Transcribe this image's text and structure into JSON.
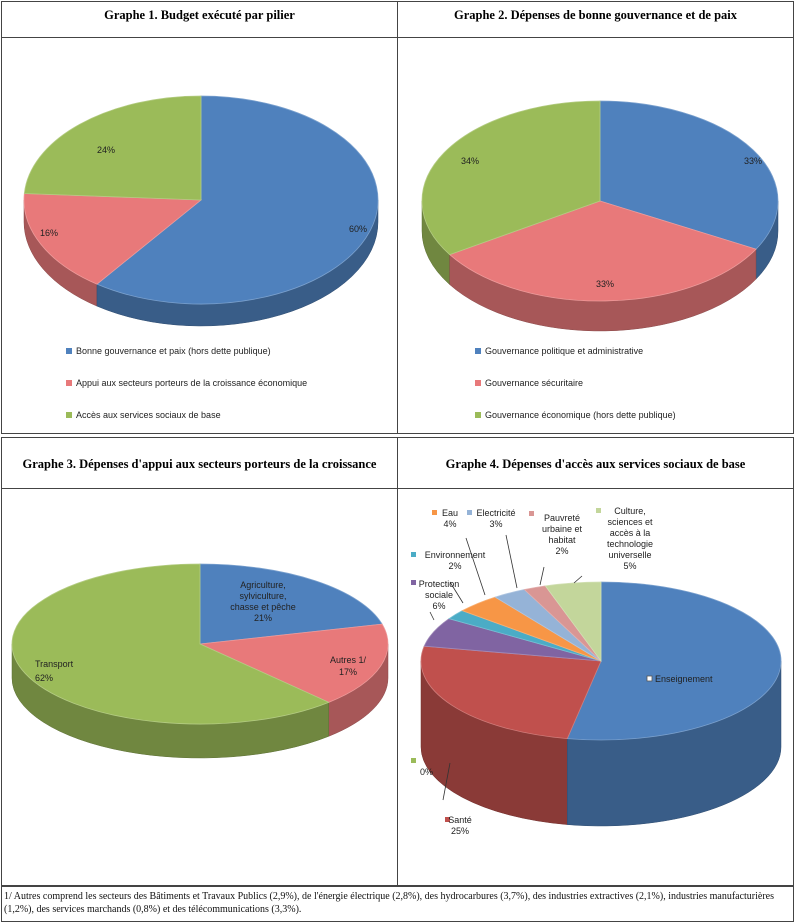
{
  "chart_data": [
    {
      "type": "pie",
      "title": "Graphe 1. Budget exécuté par pilier",
      "slices": [
        {
          "name": "Bonne gouvernance  et paix (hors dette publique)",
          "value": 60,
          "label": "60%",
          "color": "#4F81BD"
        },
        {
          "name": "Appui aux secteurs porteurs  de la croissance économique",
          "value": 16,
          "label": "16%",
          "color": "#E8797A"
        },
        {
          "name": "Accès aux services sociaux de base",
          "value": 24,
          "label": "24%",
          "color": "#9BBB59"
        }
      ],
      "legend_position": "bottom"
    },
    {
      "type": "pie",
      "title": "Graphe 2. Dépenses de bonne gouvernance et de paix",
      "slices": [
        {
          "name": "Gouvernance politique et administrative",
          "value": 33,
          "label": "33%",
          "color": "#4F81BD"
        },
        {
          "name": "Gouvernance sécuritaire",
          "value": 33,
          "label": "33%",
          "color": "#E8797A"
        },
        {
          "name": "Gouvernance économique  (hors dette publique)",
          "value": 34,
          "label": "34%",
          "color": "#9BBB59"
        }
      ],
      "legend_position": "bottom"
    },
    {
      "type": "pie",
      "title": "Graphe 3. Dépenses d'appui aux secteurs porteurs de la croissance",
      "slices": [
        {
          "name": "Agriculture, sylviculture, chasse et pêche",
          "value": 21,
          "label_lines": [
            "Agriculture,",
            "sylviculture,",
            "chasse et pêche",
            "21%"
          ],
          "color": "#4F81BD"
        },
        {
          "name": "Autres 1/",
          "value": 17,
          "label_lines": [
            "Autres 1/",
            "17%"
          ],
          "color": "#E8797A"
        },
        {
          "name": "Transport",
          "value": 62,
          "label_lines": [
            "Transport",
            "62%"
          ],
          "color": "#9BBB59"
        }
      ],
      "legend_position": "none"
    },
    {
      "type": "pie",
      "title": "Graphe 4. Dépenses d'accès aux services sociaux de base",
      "slices": [
        {
          "name": "Enseignement",
          "value": 53,
          "label_lines": [
            "Enseignement"
          ],
          "color": "#4F81BD"
        },
        {
          "name": "Santé",
          "value": 25,
          "label_lines": [
            "Santé",
            "25%"
          ],
          "color": "#C0504D"
        },
        {
          "name": "",
          "value": 0,
          "label_lines": [
            "0%"
          ],
          "color": "#9BBB59"
        },
        {
          "name": "Protection sociale",
          "value": 6,
          "label_lines": [
            "Protection",
            "sociale",
            "6%"
          ],
          "color": "#8064A2"
        },
        {
          "name": "Environnement",
          "value": 2,
          "label_lines": [
            "Environnement",
            "2%"
          ],
          "color": "#4BACC6"
        },
        {
          "name": "Eau",
          "value": 4,
          "label_lines": [
            "Eau",
            "4%"
          ],
          "color": "#F79646"
        },
        {
          "name": "Electricité",
          "value": 3,
          "label_lines": [
            "Electricité",
            "3%"
          ],
          "color": "#95B3D7"
        },
        {
          "name": "Pauvreté urbaine et habitat",
          "value": 2,
          "label_lines": [
            "Pauvreté",
            "urbaine et",
            "habitat",
            "2%"
          ],
          "color": "#D99694"
        },
        {
          "name": "Culture, sciences et accès à la technologie universelle",
          "value": 5,
          "label_lines": [
            "Culture,",
            "sciences et",
            "accès à la",
            "technologie",
            "universelle",
            "5%"
          ],
          "color": "#C3D69B"
        }
      ],
      "legend_position": "labels"
    }
  ],
  "footnote": "1/ Autres comprend les secteurs des Bâtiments et Travaux Publics (2,9%), de l'énergie électrique (2,8%), des hydrocarbures (3,7%), des industries extractives (2,1%), industries manufacturières (1,2%), des services marchands (0,8%) et des télécommunications (3,3%)."
}
